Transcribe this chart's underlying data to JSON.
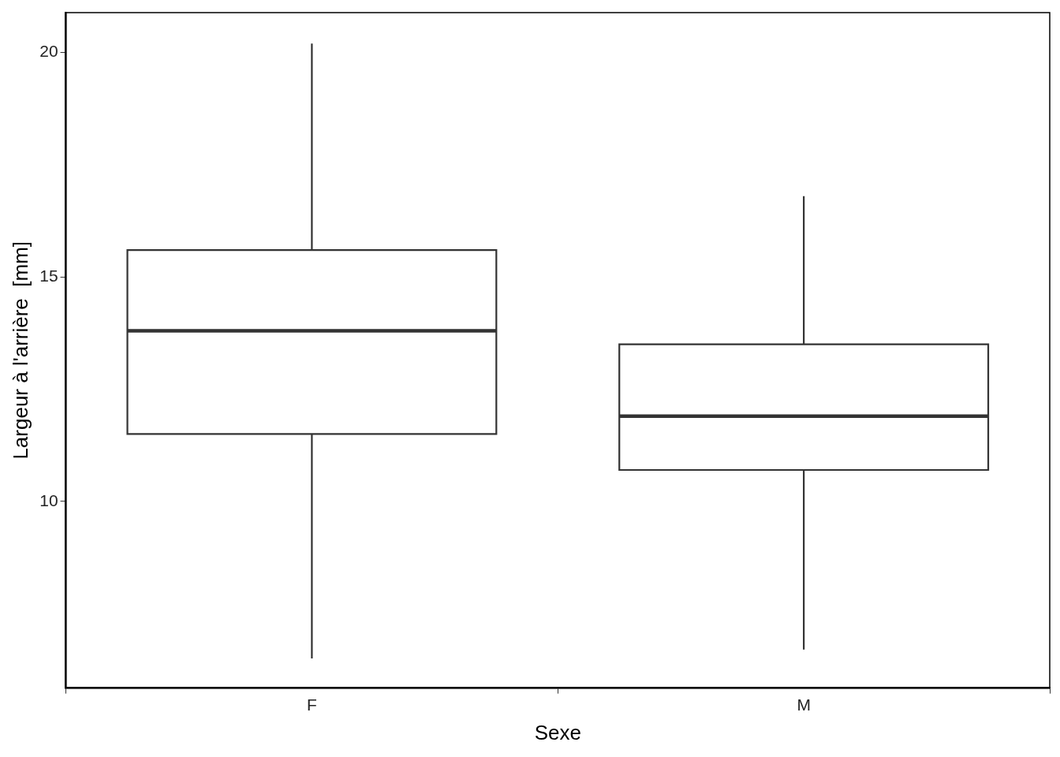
{
  "chart_data": {
    "type": "box",
    "xlabel": "Sexe",
    "ylabel": "Largeur à l'arrière  [mm]",
    "categories": [
      "F",
      "M"
    ],
    "boxes": [
      {
        "low": 6.5,
        "q1": 11.5,
        "median": 13.8,
        "q3": 15.6,
        "high": 20.2
      },
      {
        "low": 6.7,
        "q1": 10.7,
        "median": 11.9,
        "q3": 13.5,
        "high": 16.8
      }
    ],
    "color": "#333333",
    "ylim": [
      5.84,
      20.89
    ],
    "yticks": [
      10,
      15,
      20
    ],
    "grid": false,
    "legend": false
  }
}
